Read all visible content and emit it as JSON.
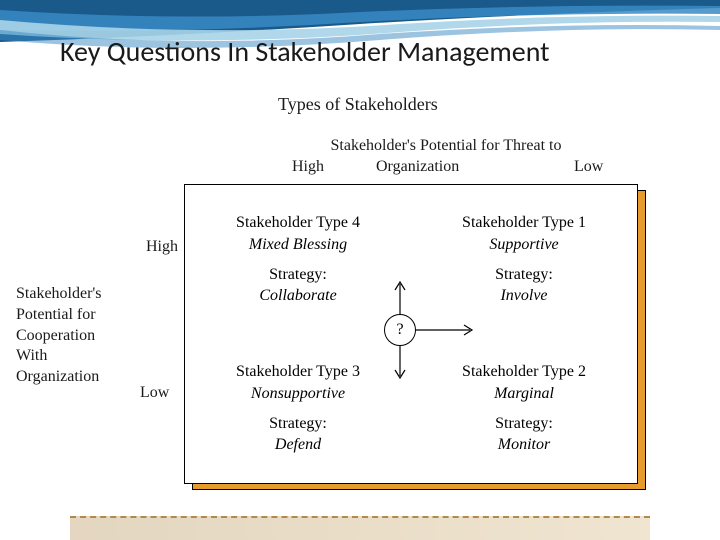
{
  "title": "Key Questions In Stakeholder Management",
  "subtitle": "Types of Stakeholders",
  "x_axis": {
    "title": "Stakeholder's Potential for Threat to",
    "high": "High",
    "mid": "Organization",
    "low": "Low"
  },
  "y_axis": {
    "title_lines": "Stakeholder's\nPotential for\nCooperation\nWith\nOrganization",
    "high": "High",
    "low": "Low"
  },
  "matrix": {
    "shadow_fill": "#e69b2c",
    "cell_fill": "#ffffff",
    "quadrants": [
      {
        "type_title": "Stakeholder Type 4",
        "type_name": "Mixed Blessing",
        "strategy_label": "Strategy:",
        "strategy_name": "Collaborate"
      },
      {
        "type_title": "Stakeholder Type 1",
        "type_name": "Supportive",
        "strategy_label": "Strategy:",
        "strategy_name": "Involve"
      },
      {
        "type_title": "Stakeholder Type 3",
        "type_name": "Nonsupportive",
        "strategy_label": "Strategy:",
        "strategy_name": "Defend"
      },
      {
        "type_title": "Stakeholder Type 2",
        "type_name": "Marginal",
        "strategy_label": "Strategy:",
        "strategy_name": "Monitor"
      }
    ]
  },
  "center_symbol": "?",
  "wave_colors": {
    "dark": "#1a5a8a",
    "mid": "#3a8ac4",
    "light": "#a8d4e8"
  }
}
